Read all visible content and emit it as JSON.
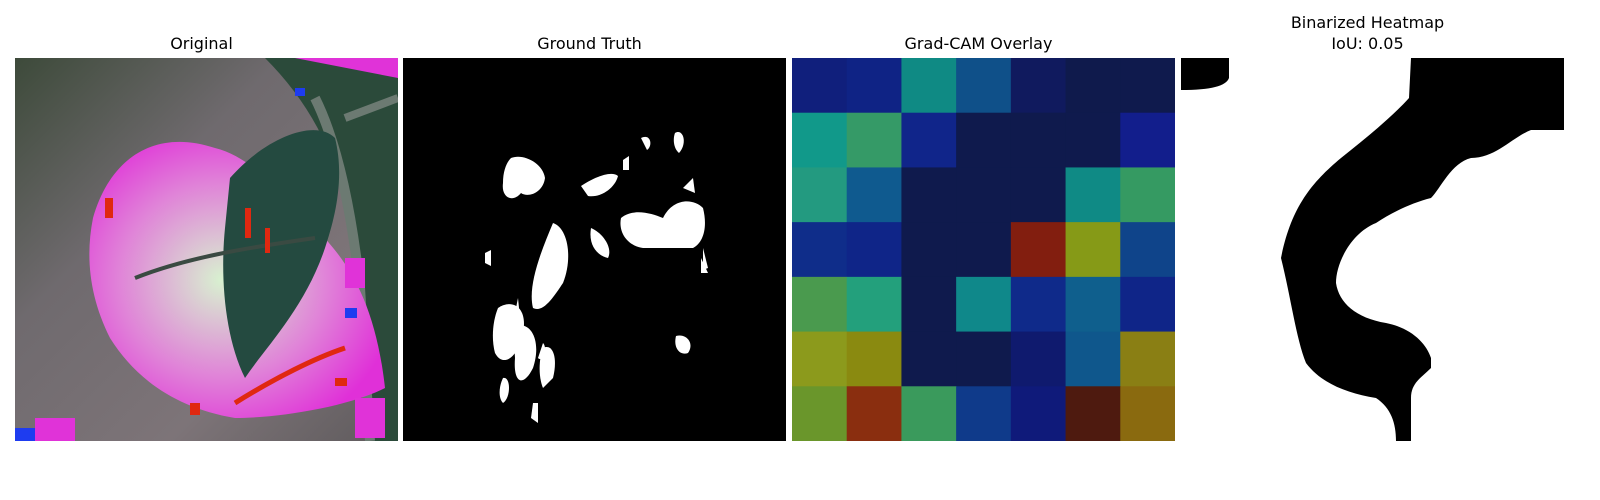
{
  "panels": [
    {
      "title": "Original"
    },
    {
      "title": "Ground Truth"
    },
    {
      "title": "Grad-CAM Overlay"
    },
    {
      "title": "Binarized Heatmap",
      "subtitle": "IoU: 0.05"
    }
  ],
  "gradcam": {
    "grid_rows": 7,
    "grid_cols": 7,
    "cells": [
      [
        "#101f7c",
        "#0f2385",
        "#0f8a84",
        "#0f5089",
        "#101a5e",
        "#0f1a4c",
        "#0f1a4d"
      ],
      [
        "#11998a",
        "#359a67",
        "#10258a",
        "#0f1a4d",
        "#0f1a4d",
        "#0f1a4d",
        "#121e8c"
      ],
      [
        "#239a80",
        "#0f5a8f",
        "#0f1a4d",
        "#0f1a4d",
        "#0f1a4d",
        "#0f8a85",
        "#359a62"
      ],
      [
        "#0f2d8a",
        "#0f2588",
        "#0f1a4d",
        "#0f1a4d",
        "#821e0f",
        "#869a17",
        "#0f448a"
      ],
      [
        "#4a9a4e",
        "#23a07c",
        "#0f1a4d",
        "#0f888a",
        "#0f2a8a",
        "#0f5f8d",
        "#0f2588"
      ],
      [
        "#8c9a1c",
        "#8a8a10",
        "#0f1a4d",
        "#0f1a4d",
        "#0f1a6e",
        "#0f578c",
        "#8a7f14"
      ],
      [
        "#6a962b",
        "#8a2e0f",
        "#3a9a5c",
        "#0f3a8a",
        "#0f1a7a",
        "#4e1a0f",
        "#8a6a0f"
      ]
    ]
  }
}
